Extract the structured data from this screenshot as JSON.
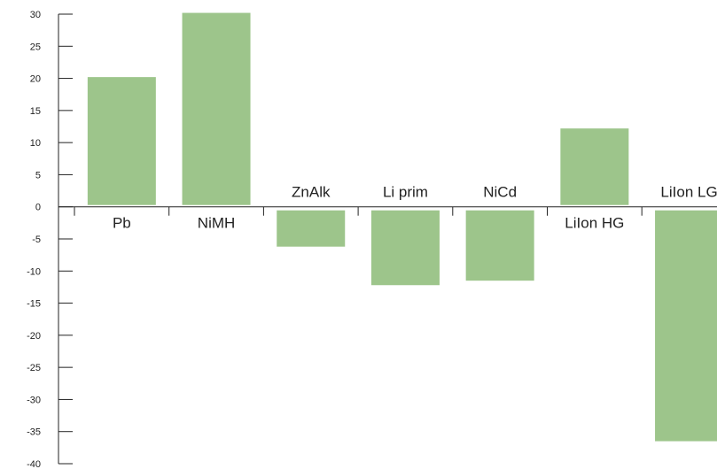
{
  "chart_data": {
    "type": "bar",
    "title": "",
    "xlabel": "",
    "ylabel": "",
    "ylim": [
      -40,
      30
    ],
    "yticks": [
      30,
      25,
      20,
      15,
      10,
      5,
      0,
      -5,
      -10,
      -15,
      -20,
      -25,
      -30,
      -35,
      -40
    ],
    "categories": [
      "Pb",
      "NiMH",
      "ZnAlk",
      "Li prim",
      "NiCd",
      "LiIon HG",
      "LiIon LG"
    ],
    "values": [
      20.2,
      30.2,
      -6.2,
      -12.2,
      -11.5,
      12.2,
      -36.5
    ],
    "bar_color": "#9dc58b",
    "grid": false
  }
}
